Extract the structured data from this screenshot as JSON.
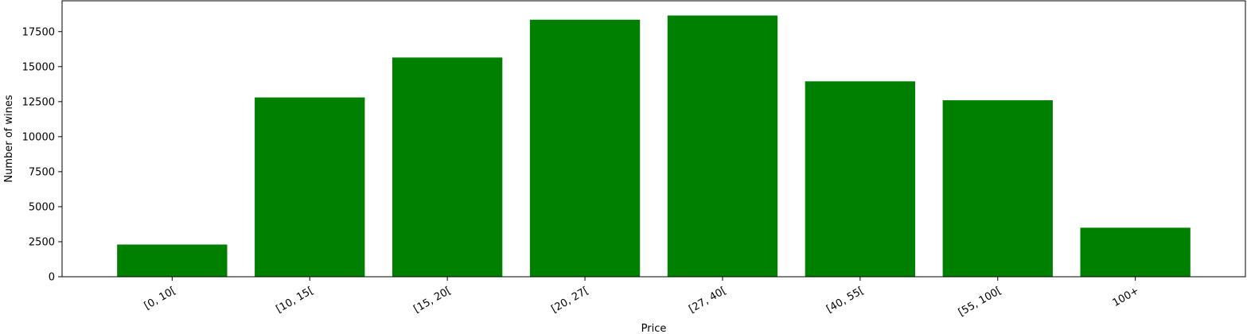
{
  "chart_data": {
    "type": "bar",
    "title": "",
    "xlabel": "Price",
    "ylabel": "Number of wines",
    "categories": [
      "[0, 10[",
      "[10, 15[",
      "[15, 20[",
      "[20, 27[",
      "[27, 40[",
      "[40, 55[",
      "[55, 100[",
      "100+"
    ],
    "values": [
      2300,
      12800,
      15650,
      18350,
      18650,
      13950,
      12600,
      3500
    ],
    "ylim": [
      0,
      19700
    ],
    "yticks": [
      0,
      2500,
      5000,
      7500,
      10000,
      12500,
      15000,
      17500
    ],
    "bar_color": "#008000",
    "grid": false,
    "legend": "none"
  }
}
